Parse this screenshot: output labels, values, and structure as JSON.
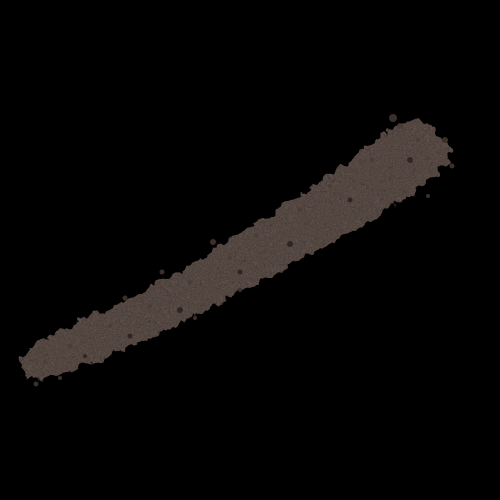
{
  "image": {
    "subject": "brown-pencil-swatch-stroke",
    "background_color": "#000000",
    "stroke_color": "#3b2f2a",
    "stroke_highlight_color": "#4a3c35",
    "stroke_shadow_color": "#2c221e"
  }
}
